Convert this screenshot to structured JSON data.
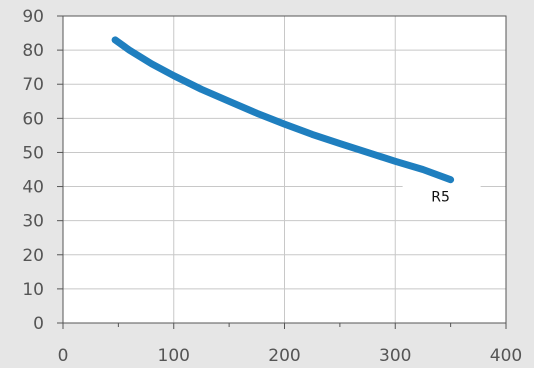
{
  "chart_data": {
    "type": "line",
    "title": "",
    "xlabel": "",
    "ylabel": "",
    "xlim": [
      0,
      400
    ],
    "ylim": [
      0,
      90
    ],
    "x_ticks": [
      "0",
      "100",
      "200",
      "300",
      "400"
    ],
    "y_ticks": [
      "0",
      "10",
      "20",
      "30",
      "40",
      "50",
      "60",
      "70",
      "80",
      "90"
    ],
    "grid": true,
    "series": [
      {
        "name": "R5",
        "color": "#1f7fbf",
        "x": [
          47,
          60,
          80,
          100,
          125,
          150,
          175,
          200,
          225,
          250,
          275,
          300,
          325,
          350
        ],
        "y": [
          83,
          80,
          76,
          72.5,
          68.5,
          65,
          61.5,
          58.3,
          55.3,
          52.6,
          50,
          47.4,
          45,
          42
        ]
      }
    ]
  }
}
